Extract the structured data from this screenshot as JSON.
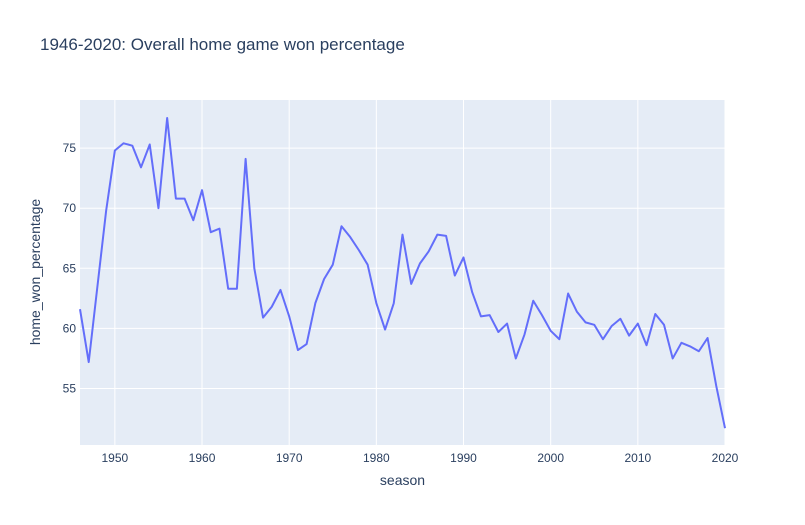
{
  "chart_data": {
    "type": "line",
    "title": "1946-2020: Overall home game won percentage",
    "xlabel": "season",
    "ylabel": "home_won_percentage",
    "xlim": [
      1946,
      2020
    ],
    "ylim": [
      50.3,
      79.0
    ],
    "xticks": [
      1950,
      1960,
      1970,
      1980,
      1990,
      2000,
      2010,
      2020
    ],
    "yticks": [
      55,
      60,
      65,
      70,
      75
    ],
    "grid": true,
    "colors": {
      "plot_bg": "#e5ecf6",
      "grid": "#ffffff",
      "line": "#636efa",
      "text": "#2a3f5f"
    },
    "series": [
      {
        "x": [
          1946,
          1947,
          1948,
          1949,
          1950,
          1951,
          1952,
          1953,
          1954,
          1955,
          1956,
          1957,
          1958,
          1959,
          1960,
          1961,
          1962,
          1963,
          1964,
          1965,
          1966,
          1967,
          1968,
          1969,
          1970,
          1971,
          1972,
          1973,
          1974,
          1975,
          1976,
          1977,
          1978,
          1979,
          1980,
          1981,
          1982,
          1983,
          1984,
          1985,
          1986,
          1987,
          1988,
          1989,
          1990,
          1991,
          1992,
          1993,
          1994,
          1995,
          1996,
          1997,
          1998,
          1999,
          2000,
          2001,
          2002,
          2003,
          2004,
          2005,
          2006,
          2007,
          2008,
          2009,
          2010,
          2011,
          2012,
          2013,
          2014,
          2015,
          2016,
          2017,
          2018,
          2019,
          2020
        ],
        "values": [
          61.6,
          57.2,
          63.5,
          69.8,
          74.8,
          75.4,
          75.2,
          73.4,
          75.3,
          70.0,
          77.5,
          70.8,
          70.8,
          69.0,
          71.5,
          68.0,
          68.3,
          63.3,
          63.3,
          74.1,
          65.0,
          60.9,
          61.8,
          63.2,
          61.0,
          58.2,
          58.7,
          62.1,
          64.1,
          65.3,
          68.5,
          67.6,
          66.5,
          65.3,
          62.1,
          59.9,
          62.1,
          67.8,
          63.7,
          65.4,
          66.4,
          67.8,
          67.7,
          64.4,
          65.9,
          63.0,
          61.0,
          61.1,
          59.7,
          60.4,
          57.5,
          59.5,
          62.3,
          61.1,
          59.8,
          59.1,
          62.9,
          61.4,
          60.5,
          60.3,
          59.1,
          60.2,
          60.8,
          59.4,
          60.4,
          58.6,
          61.2,
          60.3,
          57.5,
          58.8,
          58.5,
          58.1,
          59.2,
          55.2,
          51.7
        ]
      }
    ]
  }
}
